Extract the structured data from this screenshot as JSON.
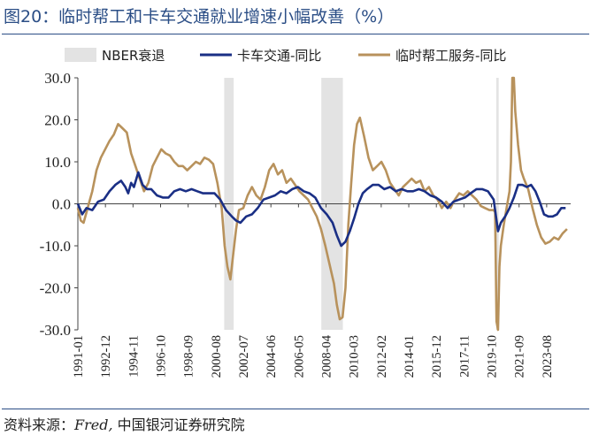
{
  "title": "图20：临时帮工和卡车交通就业增速小幅改善（%）",
  "source": {
    "label": "资料来源：",
    "italic": "Fred,",
    "rest": "中国银河证券研究院"
  },
  "colors": {
    "nber": "#e3e3e3",
    "truck": "#1a2f85",
    "temp": "#b8925c",
    "rule": "#2b4e86"
  },
  "chart_data": {
    "type": "line",
    "title": "临时帮工和卡车交通就业增速小幅改善（%）",
    "ylim": [
      -30,
      30
    ],
    "yticks": [
      "30.0",
      "20.0",
      "10.0",
      "0.0",
      "-10.0",
      "-20.0",
      "-30.0"
    ],
    "xlim": [
      1991.0,
      2025.25
    ],
    "xticks": [
      "1991-01",
      "1992-12",
      "1994-11",
      "1996-10",
      "1998-09",
      "2000-08",
      "2002-07",
      "2004-06",
      "2006-05",
      "2008-04",
      "2010-03",
      "2012-02",
      "2014-01",
      "2015-12",
      "2017-11",
      "2019-10",
      "2021-09",
      "2023-08"
    ],
    "legend": [
      "NBER衰退",
      "卡车交通-同比",
      "临时帮工服务-同比"
    ],
    "legend_position": "top",
    "grid": false,
    "recessions": [
      [
        2001.17,
        2001.83
      ],
      [
        2007.92,
        2009.42
      ],
      [
        2020.08,
        2020.25
      ]
    ],
    "series": [
      {
        "name": "卡车交通-同比",
        "color": "#1a2f85",
        "x": [
          1991.0,
          1991.3,
          1991.6,
          1992.0,
          1992.4,
          1992.8,
          1993.2,
          1993.6,
          1994.0,
          1994.3,
          1994.5,
          1994.7,
          1994.9,
          1995.2,
          1995.5,
          1995.8,
          1996.1,
          1996.5,
          1996.9,
          1997.3,
          1997.7,
          1998.1,
          1998.5,
          1998.9,
          1999.3,
          1999.7,
          2000.1,
          2000.5,
          2000.9,
          2001.3,
          2001.7,
          2002.0,
          2002.3,
          2002.7,
          2003.1,
          2003.5,
          2003.9,
          2004.3,
          2004.7,
          2005.1,
          2005.5,
          2005.9,
          2006.3,
          2006.7,
          2007.1,
          2007.5,
          2007.9,
          2008.3,
          2008.7,
          2009.0,
          2009.3,
          2009.6,
          2009.9,
          2010.2,
          2010.5,
          2010.8,
          2011.1,
          2011.5,
          2011.9,
          2012.3,
          2012.7,
          2013.1,
          2013.5,
          2013.9,
          2014.3,
          2014.7,
          2015.1,
          2015.5,
          2015.9,
          2016.3,
          2016.7,
          2017.1,
          2017.5,
          2017.9,
          2018.3,
          2018.7,
          2019.1,
          2019.5,
          2019.9,
          2020.2,
          2020.4,
          2020.7,
          2021.0,
          2021.3,
          2021.6,
          2021.9,
          2022.2,
          2022.5,
          2022.8,
          2023.1,
          2023.4,
          2023.7,
          2024.0,
          2024.3,
          2024.6,
          2024.9
        ],
        "y": [
          0.0,
          -2.5,
          -1.0,
          -1.5,
          0.5,
          1.0,
          3.0,
          4.5,
          5.5,
          4.0,
          2.5,
          5.0,
          4.0,
          7.5,
          4.5,
          3.5,
          3.5,
          2.0,
          1.5,
          1.5,
          3.0,
          3.5,
          3.0,
          3.5,
          3.0,
          2.5,
          2.5,
          2.5,
          1.0,
          -1.5,
          -3.0,
          -4.0,
          -4.5,
          -3.0,
          -2.5,
          -1.0,
          1.0,
          1.5,
          2.0,
          3.0,
          2.5,
          3.5,
          4.0,
          3.0,
          2.5,
          1.5,
          -1.0,
          -2.5,
          -4.5,
          -7.5,
          -10.0,
          -9.0,
          -6.5,
          -3.5,
          0.0,
          2.5,
          3.5,
          4.5,
          4.5,
          3.5,
          4.0,
          3.0,
          3.5,
          3.0,
          3.0,
          3.5,
          3.0,
          2.0,
          1.5,
          0.5,
          -1.0,
          0.5,
          1.0,
          1.5,
          2.5,
          3.5,
          3.5,
          3.0,
          1.0,
          -6.5,
          -4.5,
          -3.0,
          -1.0,
          1.5,
          4.5,
          4.5,
          4.0,
          4.5,
          3.0,
          0.5,
          -2.5,
          -3.0,
          -3.0,
          -2.5,
          -1.0,
          -1.0
        ]
      },
      {
        "name": "临时帮工服务-同比",
        "color": "#b8925c",
        "x": [
          1991.0,
          1991.2,
          1991.4,
          1991.6,
          1991.8,
          1992.0,
          1992.3,
          1992.6,
          1992.9,
          1993.2,
          1993.5,
          1993.8,
          1994.1,
          1994.4,
          1994.7,
          1995.0,
          1995.3,
          1995.6,
          1995.9,
          1996.2,
          1996.5,
          1996.8,
          1997.1,
          1997.4,
          1997.7,
          1998.0,
          1998.3,
          1998.6,
          1998.9,
          1999.2,
          1999.5,
          1999.8,
          2000.1,
          2000.4,
          2000.7,
          2001.0,
          2001.2,
          2001.4,
          2001.6,
          2001.8,
          2002.0,
          2002.2,
          2002.5,
          2002.8,
          2003.1,
          2003.4,
          2003.7,
          2004.0,
          2004.3,
          2004.6,
          2004.9,
          2005.2,
          2005.5,
          2005.8,
          2006.1,
          2006.4,
          2006.7,
          2007.0,
          2007.3,
          2007.6,
          2007.9,
          2008.2,
          2008.5,
          2008.8,
          2009.0,
          2009.2,
          2009.4,
          2009.6,
          2009.8,
          2010.0,
          2010.2,
          2010.4,
          2010.6,
          2010.9,
          2011.2,
          2011.5,
          2011.8,
          2012.1,
          2012.4,
          2012.7,
          2013.0,
          2013.3,
          2013.6,
          2013.9,
          2014.2,
          2014.5,
          2014.8,
          2015.1,
          2015.4,
          2015.7,
          2016.0,
          2016.3,
          2016.6,
          2016.9,
          2017.2,
          2017.5,
          2017.8,
          2018.1,
          2018.4,
          2018.7,
          2019.0,
          2019.3,
          2019.6,
          2019.9,
          2020.0,
          2020.1,
          2020.2,
          2020.3,
          2020.4,
          2020.6,
          2020.8,
          2021.0,
          2021.1,
          2021.2,
          2021.3,
          2021.4,
          2021.6,
          2021.8,
          2022.0,
          2022.3,
          2022.6,
          2022.9,
          2023.2,
          2023.5,
          2023.8,
          2024.1,
          2024.4,
          2024.7,
          2025.0
        ],
        "y": [
          -1.0,
          -4.0,
          -4.5,
          -2.0,
          0.5,
          3.0,
          8.0,
          11.0,
          13.0,
          15.0,
          16.5,
          19.0,
          18.0,
          17.0,
          12.0,
          9.0,
          6.0,
          3.0,
          5.0,
          9.0,
          11.0,
          13.0,
          12.0,
          11.5,
          10.0,
          9.0,
          9.0,
          8.0,
          9.0,
          10.0,
          9.5,
          11.0,
          10.5,
          9.5,
          5.0,
          -1.0,
          -10.0,
          -15.0,
          -18.0,
          -12.0,
          -6.0,
          -1.5,
          -1.0,
          2.0,
          4.0,
          2.0,
          1.0,
          4.0,
          8.0,
          9.5,
          7.0,
          8.0,
          5.0,
          6.0,
          4.5,
          3.0,
          2.0,
          1.0,
          -1.0,
          -3.0,
          -6.0,
          -10.0,
          -14.5,
          -19.0,
          -24.0,
          -27.5,
          -27.0,
          -20.0,
          -5.0,
          5.0,
          14.0,
          19.0,
          20.5,
          16.0,
          11.0,
          8.0,
          9.0,
          10.0,
          8.0,
          5.0,
          3.5,
          2.0,
          4.0,
          5.0,
          6.0,
          5.0,
          5.5,
          3.0,
          4.0,
          2.0,
          1.0,
          -1.0,
          0.5,
          -1.0,
          1.0,
          2.5,
          2.0,
          3.0,
          2.0,
          1.0,
          -0.5,
          -1.0,
          -1.5,
          -1.5,
          -2.0,
          -28.0,
          -30.0,
          -15.0,
          -10.0,
          -5.0,
          -1.0,
          3.0,
          10.0,
          30.0,
          30.0,
          22.0,
          14.0,
          8.0,
          6.0,
          3.5,
          -1.0,
          -5.0,
          -8.0,
          -9.5,
          -9.0,
          -8.0,
          -8.5,
          -7.0,
          -6.0
        ]
      }
    ]
  }
}
